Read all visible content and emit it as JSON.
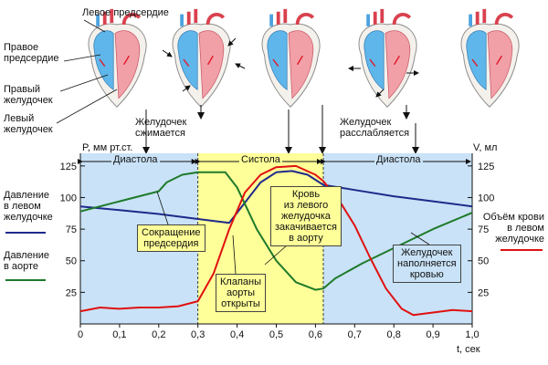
{
  "heart_labels": {
    "left_atrium": "Левое предсердие",
    "right_atrium": "Правое\nпредсердие",
    "right_ventricle": "Правый\nжелудочек",
    "left_ventricle": "Левый\nжелудочек"
  },
  "annotations": {
    "ventricle_contracts": "Желудочек\nсжимается",
    "ventricle_relaxes": "Желудочек\nрасслабляется"
  },
  "phases": {
    "diastole_1": "Диастола",
    "systole": "Систола",
    "diastole_2": "Диастола"
  },
  "legend": {
    "lv_pressure": "Давление\nв левом\nжелудочке",
    "aorta_pressure": "Давление\nв аорте",
    "lv_volume": "Объём крови\nв левом\nжелудочке"
  },
  "callouts": {
    "atrial_contraction": "Сокращение\nпредсердия",
    "aortic_valves_open": "Клапаны\nаорты\nоткрыты",
    "blood_pumped": "Кровь\nиз левого\nжелудочка\nзакачивается\nв аорту",
    "ventricle_fills": "Желудочек\nнаполняется\nкровью"
  },
  "colors": {
    "lv_pressure": "#1f2a8a",
    "aorta_pressure": "#1e7a2a",
    "lv_volume": "#e01010",
    "diastole_bg": "#c9e2f7",
    "systole_bg": "#ffff99"
  },
  "chart_data": {
    "type": "line",
    "xlabel": "t, сек",
    "ylabel_left": "P, мм рт.ст.",
    "ylabel_right": "V, мл",
    "xlim": [
      0,
      1.0
    ],
    "ylim": [
      0,
      135
    ],
    "x_ticks": [
      "0",
      "0,1",
      "0,2",
      "0,3",
      "0,4",
      "0,5",
      "0,6",
      "0,7",
      "0,8",
      "0,9",
      "1,0"
    ],
    "y_ticks": [
      "25",
      "50",
      "75",
      "100",
      "125"
    ],
    "phase_boundaries": [
      0.3,
      0.62
    ],
    "series": [
      {
        "name": "Давление в левом желудочке",
        "axis": "left",
        "points": [
          [
            0,
            93
          ],
          [
            0.1,
            90
          ],
          [
            0.2,
            87
          ],
          [
            0.3,
            83
          ],
          [
            0.38,
            80
          ],
          [
            0.42,
            96
          ],
          [
            0.46,
            112
          ],
          [
            0.5,
            120
          ],
          [
            0.54,
            121
          ],
          [
            0.58,
            118
          ],
          [
            0.62,
            110
          ],
          [
            0.7,
            106
          ],
          [
            0.8,
            101
          ],
          [
            0.9,
            97
          ],
          [
            1.0,
            93
          ]
        ]
      },
      {
        "name": "Давление в аорте",
        "axis": "left",
        "points": [
          [
            0,
            89
          ],
          [
            0.1,
            97
          ],
          [
            0.2,
            105
          ],
          [
            0.22,
            112
          ],
          [
            0.26,
            118
          ],
          [
            0.3,
            120
          ],
          [
            0.37,
            120
          ],
          [
            0.4,
            108
          ],
          [
            0.45,
            75
          ],
          [
            0.5,
            50
          ],
          [
            0.55,
            33
          ],
          [
            0.6,
            27
          ],
          [
            0.62,
            28
          ],
          [
            0.65,
            36
          ],
          [
            0.72,
            48
          ],
          [
            0.8,
            60
          ],
          [
            0.9,
            75
          ],
          [
            1.0,
            88
          ]
        ]
      },
      {
        "name": "Объём крови в левом желудочке",
        "axis": "right",
        "points": [
          [
            0,
            10
          ],
          [
            0.05,
            13
          ],
          [
            0.1,
            12
          ],
          [
            0.15,
            13
          ],
          [
            0.2,
            13
          ],
          [
            0.25,
            14
          ],
          [
            0.3,
            18
          ],
          [
            0.34,
            40
          ],
          [
            0.38,
            75
          ],
          [
            0.42,
            104
          ],
          [
            0.46,
            118
          ],
          [
            0.5,
            124
          ],
          [
            0.55,
            125
          ],
          [
            0.6,
            118
          ],
          [
            0.62,
            113
          ],
          [
            0.66,
            98
          ],
          [
            0.7,
            78
          ],
          [
            0.74,
            52
          ],
          [
            0.78,
            28
          ],
          [
            0.82,
            12
          ],
          [
            0.85,
            7
          ],
          [
            0.9,
            9
          ],
          [
            0.95,
            11
          ],
          [
            1.0,
            10
          ]
        ]
      }
    ]
  }
}
